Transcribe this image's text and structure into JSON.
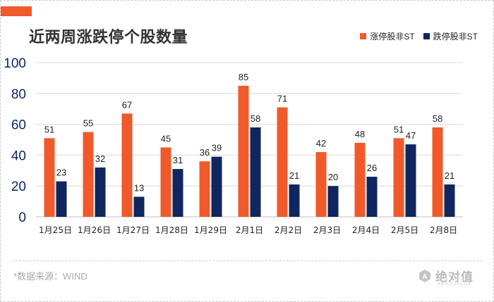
{
  "colors": {
    "accent": "#f05a2a",
    "limit_up": "#f05a2a",
    "limit_down": "#0f2660",
    "axis_text": "#0f2660"
  },
  "title": "近两周涨跌停个股数量",
  "legend": [
    {
      "label": "涨停股非ST",
      "color": "#f05a2a"
    },
    {
      "label": "跌停股非ST",
      "color": "#0f2660"
    }
  ],
  "footer": {
    "source": "*数据来源：WIND",
    "logo_text": "绝对值",
    "logo_subtext": "ABSOVALUE"
  },
  "chart_data": {
    "type": "bar",
    "title": "近两周涨跌停个股数量",
    "categories": [
      "1月25日",
      "1月26日",
      "1月27日",
      "1月28日",
      "1月29日",
      "2月1日",
      "2月2日",
      "2月3日",
      "2月4日",
      "2月5日",
      "2月8日"
    ],
    "series": [
      {
        "name": "涨停股非ST",
        "values": [
          51,
          55,
          67,
          45,
          36,
          85,
          71,
          42,
          48,
          51,
          58
        ]
      },
      {
        "name": "跌停股非ST",
        "values": [
          23,
          32,
          13,
          31,
          39,
          58,
          21,
          20,
          26,
          47,
          21
        ]
      }
    ],
    "yticks": [
      0,
      20,
      40,
      60,
      80,
      100
    ],
    "ylim": [
      0,
      100
    ],
    "grid": true,
    "legend_position": "top-right",
    "data_labels": true
  }
}
